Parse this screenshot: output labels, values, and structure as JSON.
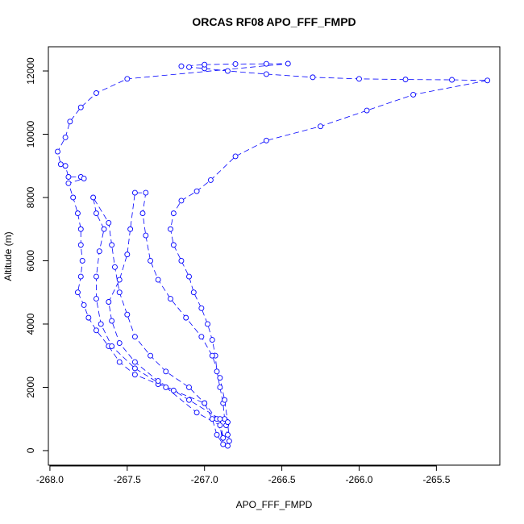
{
  "chart_data": {
    "type": "line",
    "title": "ORCAS RF08 APO_FFF_FMPD",
    "x_label": "APO_FFF_FMPD",
    "y_label": "Altitude (m)",
    "color": "#0000ff",
    "markers": true,
    "xlim": [
      -268.01,
      -265.09
    ],
    "ylim": [
      -460,
      12765
    ],
    "xticks": [
      {
        "value": -268,
        "label": "-268.0"
      },
      {
        "value": -267.5,
        "label": "-267.5"
      },
      {
        "value": -267,
        "label": "-267.0"
      },
      {
        "value": -266.5,
        "label": "-266.5"
      },
      {
        "value": -266,
        "label": "-266.0"
      },
      {
        "value": -265.5,
        "label": "-265.5"
      }
    ],
    "yticks": [
      0,
      2000,
      4000,
      6000,
      8000,
      10000,
      12000
    ],
    "x": [
      -266.85,
      -266.85,
      -266.86,
      -266.87,
      -266.88,
      -266.9,
      -266.92,
      -266.93,
      -266.95,
      -266.98,
      -267.02,
      -267.07,
      -267.1,
      -267.15,
      -267.2,
      -267.22,
      -267.2,
      -267.15,
      -267.05,
      -266.96,
      -266.8,
      -266.6,
      -266.25,
      -265.95,
      -265.65,
      -265.17,
      -265.4,
      -265.7,
      -266.0,
      -266.3,
      -266.6,
      -266.85,
      -267.0,
      -267.1,
      -267.15,
      -267.0,
      -266.8,
      -266.6,
      -266.46,
      -267.5,
      -267.7,
      -267.8,
      -267.87,
      -267.9,
      -267.95,
      -267.93,
      -267.9,
      -267.88,
      -267.8,
      -267.78,
      -267.88,
      -267.85,
      -267.82,
      -267.8,
      -267.8,
      -267.79,
      -267.8,
      -267.82,
      -267.78,
      -267.75,
      -267.7,
      -267.62,
      -267.55,
      -267.45,
      -267.3,
      -267.2,
      -267.0,
      -266.95,
      -266.92,
      -266.88,
      -266.9,
      -267.05,
      -267.25,
      -267.45,
      -267.6,
      -267.67,
      -267.7,
      -267.7,
      -267.68,
      -267.65,
      -267.7,
      -267.72,
      -267.62,
      -267.6,
      -267.58,
      -267.55,
      -267.5,
      -267.45,
      -267.35,
      -267.25,
      -267.1,
      -267.0,
      -266.92,
      -266.88,
      -266.9,
      -267.1,
      -267.3,
      -267.45,
      -267.55,
      -267.6,
      -267.62,
      -267.55,
      -267.5,
      -267.48,
      -267.45,
      -267.38,
      -267.4,
      -267.38,
      -267.35,
      -267.3,
      -267.22,
      -267.12,
      -267.02,
      -266.95,
      -266.9,
      -266.87,
      -266.85,
      -266.84
    ],
    "values": [
      150,
      500,
      800,
      1000,
      1500,
      2000,
      2500,
      3000,
      3500,
      4000,
      4500,
      5000,
      5500,
      6000,
      6500,
      7000,
      7500,
      7900,
      8200,
      8550,
      9300,
      9800,
      10250,
      10750,
      11250,
      11700,
      11720,
      11730,
      11750,
      11800,
      11900,
      12000,
      12080,
      12120,
      12150,
      12200,
      12220,
      12225,
      12230,
      11750,
      11300,
      10850,
      10400,
      9900,
      9450,
      9050,
      9000,
      8650,
      8650,
      8600,
      8450,
      8000,
      7500,
      7000,
      6500,
      6000,
      5500,
      5000,
      4600,
      4200,
      3800,
      3300,
      2800,
      2400,
      2100,
      1900,
      1500,
      1000,
      500,
      200,
      800,
      1200,
      2000,
      2600,
      3300,
      4000,
      4800,
      5500,
      6300,
      7000,
      7500,
      8000,
      7200,
      6500,
      5800,
      5000,
      4300,
      3600,
      3000,
      2500,
      2000,
      1500,
      1000,
      400,
      1000,
      1600,
      2200,
      2800,
      3400,
      4100,
      4700,
      5400,
      6200,
      7000,
      8150,
      8150,
      7500,
      6800,
      6000,
      5400,
      4800,
      4200,
      3600,
      3000,
      2300,
      1600,
      900,
      300
    ]
  }
}
